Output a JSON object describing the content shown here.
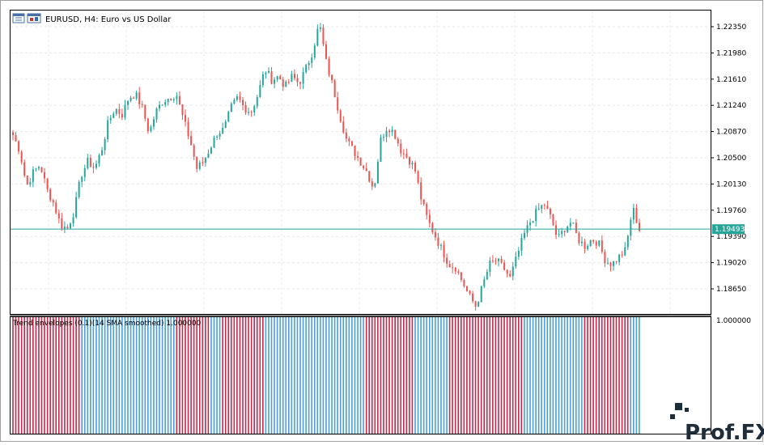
{
  "window": {
    "title": "EURUSD, H4:  Euro vs US Dollar"
  },
  "indicator": {
    "label": "Trend envelopes (0.1)(14 SMA smoothed) 1.000000",
    "scale_label": "1.000000"
  },
  "logo": {
    "text": "Prof.FX"
  },
  "colors": {
    "bull": "#26a69a",
    "bear": "#ef5350",
    "hist_up": "#4a9fd8",
    "hist_down": "#c4284a",
    "price_line": "#26a69a",
    "grid": "#e8e8e8",
    "logo": "#1f2d3a"
  },
  "icons": [
    "chart-window-icon",
    "chart-maximize-icon"
  ],
  "chart_data": [
    {
      "type": "candlestick",
      "symbol": "EURUSD",
      "timeframe": "H4",
      "title": "EURUSD, H4:  Euro vs US Dollar",
      "ylim": [
        1.183,
        1.2255
      ],
      "y_ticks": [
        "1.22350",
        "1.21980",
        "1.21610",
        "1.21240",
        "1.20870",
        "1.20500",
        "1.20130",
        "1.19760",
        "1.19390",
        "1.19020",
        "1.18650"
      ],
      "y_tick_values": [
        1.2235,
        1.2198,
        1.2161,
        1.2124,
        1.2087,
        1.205,
        1.2013,
        1.1976,
        1.1939,
        1.1902,
        1.1865
      ],
      "current_price": 1.19493,
      "current_price_label": "1.19493",
      "grid": true,
      "waypoints": [
        1.2082,
        1.206,
        1.201,
        1.203,
        1.204,
        1.2005,
        1.1985,
        1.1955,
        1.195,
        1.1975,
        1.2025,
        1.2045,
        1.2035,
        1.206,
        1.21,
        1.212,
        1.211,
        1.2135,
        1.214,
        1.212,
        1.2085,
        1.2115,
        1.213,
        1.2135,
        1.214,
        1.2105,
        1.2075,
        1.2035,
        1.2045,
        1.2065,
        1.2085,
        1.209,
        1.212,
        1.2135,
        1.212,
        1.2115,
        1.214,
        1.2175,
        1.216,
        1.2165,
        1.215,
        1.2165,
        1.2155,
        1.2175,
        1.22,
        1.224,
        1.2185,
        1.215,
        1.211,
        1.2075,
        1.206,
        1.2045,
        1.203,
        1.2005,
        1.2075,
        1.2095,
        1.2085,
        1.206,
        1.205,
        1.2035,
        1.199,
        1.196,
        1.194,
        1.192,
        1.19,
        1.1895,
        1.1875,
        1.1855,
        1.184,
        1.187,
        1.19,
        1.1905,
        1.1895,
        1.188,
        1.191,
        1.194,
        1.196,
        1.1975,
        1.1985,
        1.1965,
        1.1935,
        1.195,
        1.196,
        1.1935,
        1.1925,
        1.1935,
        1.193,
        1.1905,
        1.19,
        1.191,
        1.192,
        1.198,
        1.1949
      ]
    },
    {
      "type": "histogram",
      "name": "Trend envelopes (0.1)(14 SMA smoothed)",
      "scale": "1.000000",
      "segments": [
        {
          "state": "down",
          "bars": 24
        },
        {
          "state": "up",
          "bars": 33
        },
        {
          "state": "down",
          "bars": 12
        },
        {
          "state": "up",
          "bars": 4
        },
        {
          "state": "down",
          "bars": 15
        },
        {
          "state": "up",
          "bars": 35
        },
        {
          "state": "down",
          "bars": 17
        },
        {
          "state": "up",
          "bars": 12
        },
        {
          "state": "down",
          "bars": 26
        },
        {
          "state": "up",
          "bars": 21
        },
        {
          "state": "down",
          "bars": 16
        },
        {
          "state": "up",
          "bars": 4
        }
      ]
    }
  ]
}
